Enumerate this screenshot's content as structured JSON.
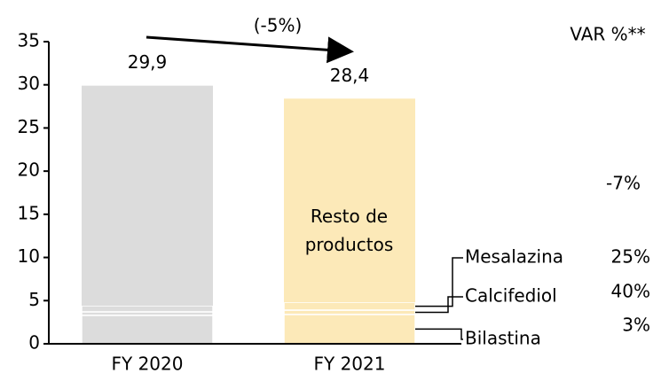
{
  "chart_data": {
    "type": "stacked_bar",
    "categories": [
      "FY 2020",
      "FY 2021"
    ],
    "colors": [
      "#dcdcdc",
      "#fce9b8"
    ],
    "series": [
      {
        "name": "Bilastina",
        "values": [
          3.3,
          3.4
        ],
        "var": "3%"
      },
      {
        "name": "Calcifediol",
        "values": [
          0.4,
          0.5
        ],
        "var": "40%"
      },
      {
        "name": "Mesalazina",
        "values": [
          0.7,
          0.9
        ],
        "var": "25%"
      },
      {
        "name": "Resto de productos",
        "values": [
          25.5,
          23.6
        ],
        "var": "-7%"
      }
    ],
    "totals": [
      29.9,
      28.4
    ],
    "total_labels": [
      "29,9",
      "28,4"
    ],
    "change_label": "(-5%)",
    "var_header": "VAR %**",
    "ylim": [
      0,
      35
    ],
    "yticks": [
      0,
      5,
      10,
      15,
      20,
      25,
      30,
      35
    ]
  }
}
